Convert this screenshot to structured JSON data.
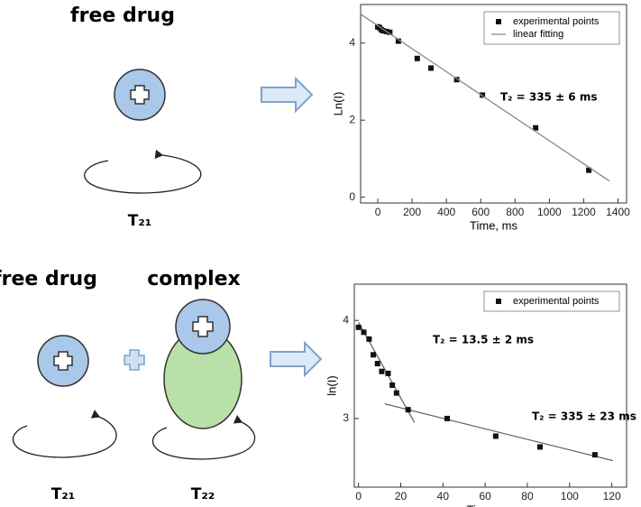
{
  "diagram": {
    "top": {
      "label": "free drug",
      "period": "T₂₁"
    },
    "bottom": {
      "label": "free drug",
      "complex": "complex",
      "period_free": "T₂₁",
      "period_complex": "T₂₂"
    }
  },
  "chart_data": [
    {
      "type": "scatter",
      "ylabel": "Ln(I)",
      "xlabel": "Time, ms",
      "annotation": "T₂ = 335 ± 6 ms",
      "xlim": [
        -100,
        1450
      ],
      "ylim": [
        -0.15,
        5
      ],
      "xticks": [
        0,
        200,
        400,
        600,
        800,
        1000,
        1200,
        1400
      ],
      "yticks": [
        0,
        2,
        4
      ],
      "legend": "top-right",
      "series": [
        {
          "name": "experimental points",
          "color": "#111111",
          "x": [
            0,
            10,
            20,
            30,
            50,
            70,
            120,
            230,
            310,
            460,
            610,
            920,
            1230
          ],
          "values": [
            4.42,
            4.4,
            4.35,
            4.32,
            4.3,
            4.28,
            4.05,
            3.6,
            3.35,
            3.05,
            2.65,
            1.8,
            0.7
          ]
        },
        {
          "name": "linear fitting",
          "color": "#888888",
          "line": true,
          "x": [
            -100,
            1350
          ],
          "values": [
            4.75,
            0.42
          ]
        }
      ]
    },
    {
      "type": "scatter",
      "ylabel": "ln(I)",
      "xlabel": "Time, ms",
      "annotations": [
        "T₂ = 13.5 ± 2 ms",
        "T₂ = 335 ± 23 ms"
      ],
      "xlim": [
        -2,
        127
      ],
      "ylim": [
        2.3,
        4.37
      ],
      "xticks": [
        0,
        20,
        40,
        60,
        80,
        100,
        120
      ],
      "yticks": [
        3,
        4
      ],
      "legend": "top-right",
      "series": [
        {
          "name": "experimental points",
          "color": "#111111",
          "x": [
            0,
            2.5,
            5,
            7,
            9,
            11,
            14,
            16,
            18,
            23.5,
            42,
            65,
            86,
            112
          ],
          "values": [
            3.93,
            3.88,
            3.81,
            3.65,
            3.56,
            3.48,
            3.46,
            3.34,
            3.26,
            3.09,
            3.0,
            2.82,
            2.71,
            2.63
          ]
        }
      ],
      "lines": [
        {
          "color": "#666666",
          "x": [
            0,
            26.5
          ],
          "values": [
            3.98,
            2.96
          ]
        },
        {
          "color": "#666666",
          "x": [
            12.4,
            120.5
          ],
          "values": [
            3.15,
            2.57
          ]
        }
      ]
    }
  ]
}
